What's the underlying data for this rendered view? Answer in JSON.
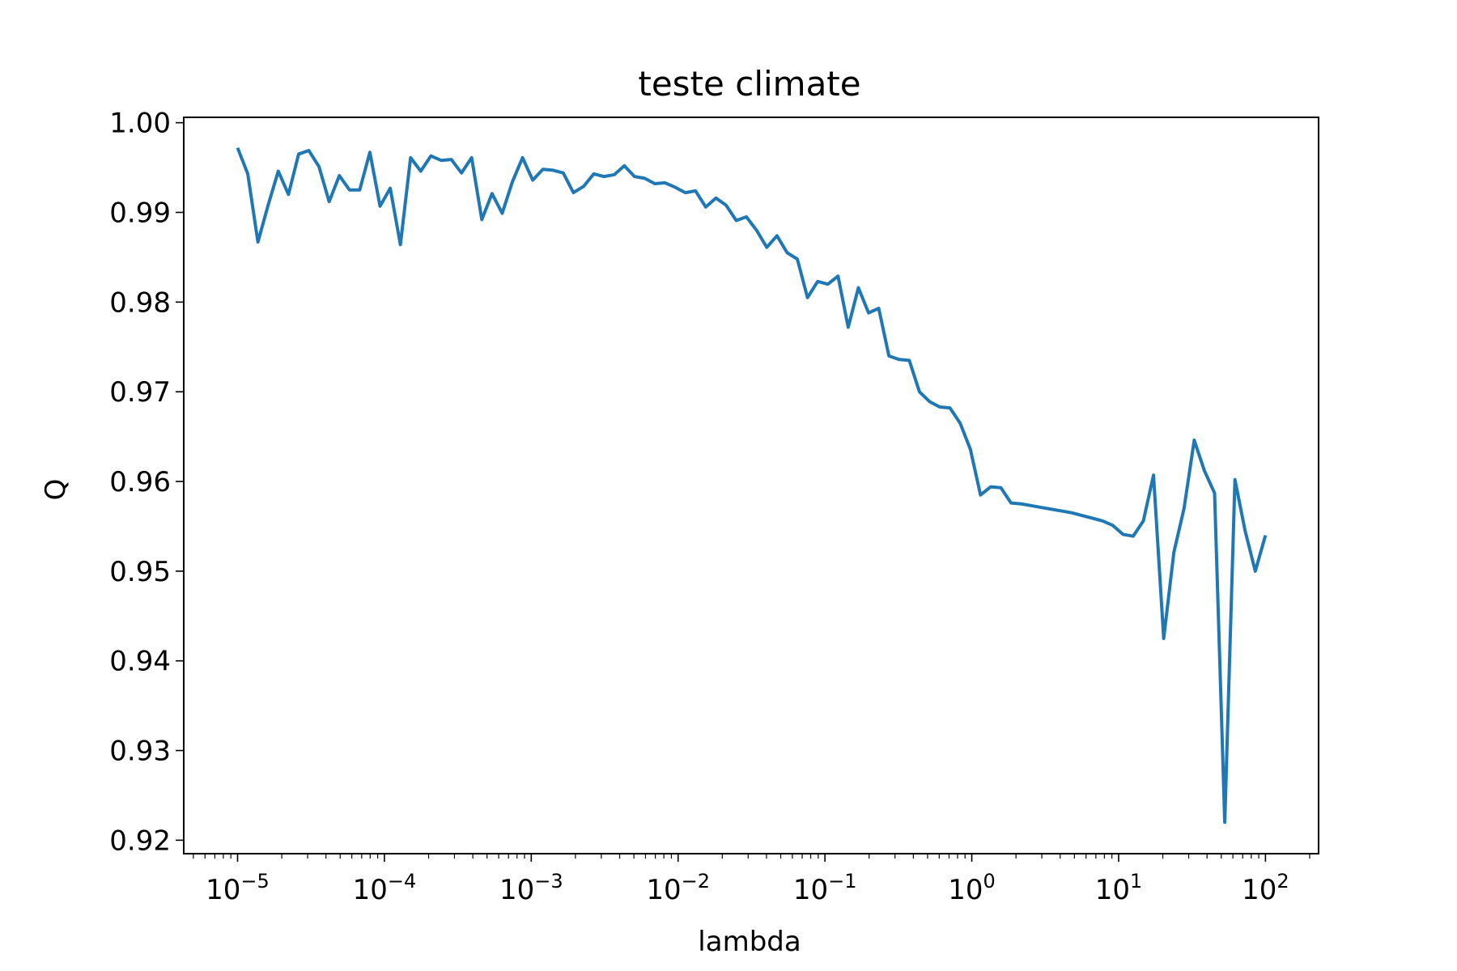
{
  "chart_data": {
    "type": "line",
    "title": "teste climate",
    "xlabel": "lambda",
    "ylabel": "Q",
    "xscale": "log",
    "xlim": [
      4.3e-06,
      230
    ],
    "ylim": [
      0.9185,
      1.0006
    ],
    "grid": false,
    "x_ticks": [
      {
        "value": 1e-05,
        "base": "10",
        "exp": "−5"
      },
      {
        "value": 0.0001,
        "base": "10",
        "exp": "−4"
      },
      {
        "value": 0.001,
        "base": "10",
        "exp": "−3"
      },
      {
        "value": 0.01,
        "base": "10",
        "exp": "−2"
      },
      {
        "value": 0.1,
        "base": "10",
        "exp": "−1"
      },
      {
        "value": 1,
        "base": "10",
        "exp": "0"
      },
      {
        "value": 10,
        "base": "10",
        "exp": "1"
      },
      {
        "value": 100,
        "base": "10",
        "exp": "2"
      }
    ],
    "y_ticks": [
      {
        "value": 0.92,
        "label": "0.92"
      },
      {
        "value": 0.93,
        "label": "0.93"
      },
      {
        "value": 0.94,
        "label": "0.94"
      },
      {
        "value": 0.95,
        "label": "0.95"
      },
      {
        "value": 0.96,
        "label": "0.96"
      },
      {
        "value": 0.97,
        "label": "0.97"
      },
      {
        "value": 0.98,
        "label": "0.98"
      },
      {
        "value": 0.99,
        "label": "0.99"
      },
      {
        "value": 1.0,
        "label": "1.00"
      }
    ],
    "series": [
      {
        "color": "#1f77b4",
        "x_log10_start": -5,
        "x_log10_end": 2,
        "y": [
          0.9972,
          0.9943,
          0.9867,
          0.9908,
          0.9946,
          0.992,
          0.9965,
          0.9969,
          0.9951,
          0.9912,
          0.9941,
          0.9925,
          0.9925,
          0.9967,
          0.9907,
          0.9927,
          0.9864,
          0.9961,
          0.9946,
          0.9963,
          0.9958,
          0.9959,
          0.9944,
          0.9961,
          0.9892,
          0.9921,
          0.9899,
          0.9934,
          0.9961,
          0.9936,
          0.9948,
          0.9947,
          0.9944,
          0.9922,
          0.9929,
          0.9943,
          0.994,
          0.9942,
          0.9952,
          0.994,
          0.9938,
          0.9932,
          0.9933,
          0.9928,
          0.9922,
          0.9924,
          0.9906,
          0.9916,
          0.9908,
          0.9891,
          0.9895,
          0.988,
          0.9861,
          0.9874,
          0.9855,
          0.9848,
          0.9805,
          0.9823,
          0.982,
          0.9829,
          0.9772,
          0.9816,
          0.9788,
          0.9793,
          0.974,
          0.9736,
          0.9735,
          0.97,
          0.9689,
          0.9683,
          0.9682,
          0.9665,
          0.9636,
          0.9585,
          0.9594,
          0.9593,
          0.9576,
          0.9575,
          0.9573,
          0.9571,
          0.9569,
          0.9567,
          0.9565,
          0.9562,
          0.9559,
          0.9556,
          0.9551,
          0.9541,
          0.9539,
          0.9556,
          0.9607,
          0.9425,
          0.9521,
          0.957,
          0.9646,
          0.9612,
          0.9587,
          0.922,
          0.9602,
          0.9545,
          0.95,
          0.954
        ]
      }
    ]
  }
}
